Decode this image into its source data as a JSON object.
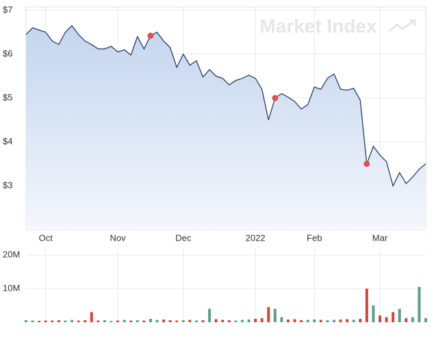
{
  "chart_data": [
    {
      "type": "area",
      "watermark": "Market Index",
      "categories": [
        null,
        null,
        null,
        "Oct",
        null,
        null,
        null,
        null,
        null,
        null,
        null,
        null,
        null,
        null,
        "Nov",
        null,
        null,
        null,
        null,
        null,
        null,
        null,
        null,
        null,
        "Dec",
        null,
        null,
        null,
        null,
        null,
        null,
        null,
        null,
        null,
        null,
        "2022",
        null,
        null,
        null,
        null,
        null,
        null,
        null,
        null,
        "Feb",
        null,
        null,
        null,
        null,
        null,
        null,
        null,
        null,
        null,
        "Mar",
        null,
        null,
        null,
        null,
        null,
        null,
        null
      ],
      "series": [
        {
          "color": "#2b3a67",
          "values": [
            6.45,
            6.6,
            6.55,
            6.5,
            6.3,
            6.22,
            6.5,
            6.65,
            6.45,
            6.3,
            6.22,
            6.12,
            6.12,
            6.18,
            6.05,
            6.1,
            5.98,
            6.4,
            6.12,
            6.42,
            6.5,
            6.3,
            6.15,
            5.7,
            6.0,
            5.75,
            5.85,
            5.48,
            5.65,
            5.5,
            5.45,
            5.3,
            5.4,
            5.45,
            5.52,
            5.45,
            5.2,
            4.5,
            5.0,
            5.1,
            5.02,
            4.92,
            4.75,
            4.85,
            5.25,
            5.2,
            5.45,
            5.55,
            5.2,
            5.18,
            5.22,
            4.95,
            3.5,
            3.9,
            3.7,
            3.55,
            3.0,
            3.3,
            3.05,
            3.2,
            3.38,
            3.5
          ]
        }
      ],
      "marked_points": [
        19,
        38,
        52
      ],
      "marker_color": "#d9534f",
      "ylim": [
        2,
        7
      ],
      "yticks": [
        {
          "value": 3,
          "label": "$3"
        },
        {
          "value": 4,
          "label": "$4"
        },
        {
          "value": 5,
          "label": "$5"
        },
        {
          "value": 6,
          "label": "$6"
        },
        {
          "value": 7,
          "label": "$7"
        }
      ],
      "grid": true
    },
    {
      "type": "bar",
      "up_color": "#5a9e8f",
      "down_color": "#c9493f",
      "values": [
        600000,
        500000,
        400000,
        500000,
        500000,
        600000,
        500000,
        700000,
        500000,
        600000,
        3000000,
        500000,
        600000,
        400000,
        500000,
        700000,
        500000,
        600000,
        500000,
        1000000,
        700000,
        800000,
        600000,
        500000,
        600000,
        700000,
        500000,
        600000,
        4000000,
        900000,
        700000,
        600000,
        500000,
        700000,
        800000,
        1000000,
        1200000,
        4500000,
        4000000,
        1500000,
        800000,
        900000,
        600000,
        700000,
        800000,
        700000,
        600000,
        700000,
        800000,
        900000,
        700000,
        1000000,
        10000000,
        5000000,
        2000000,
        1500000,
        3000000,
        4000000,
        1200000,
        1500000,
        10500000,
        1200000
      ],
      "ylim": [
        0,
        20000000
      ],
      "yticks": [
        {
          "value": 10000000,
          "label": "10M"
        },
        {
          "value": 20000000,
          "label": "20M"
        }
      ],
      "grid": true
    }
  ]
}
